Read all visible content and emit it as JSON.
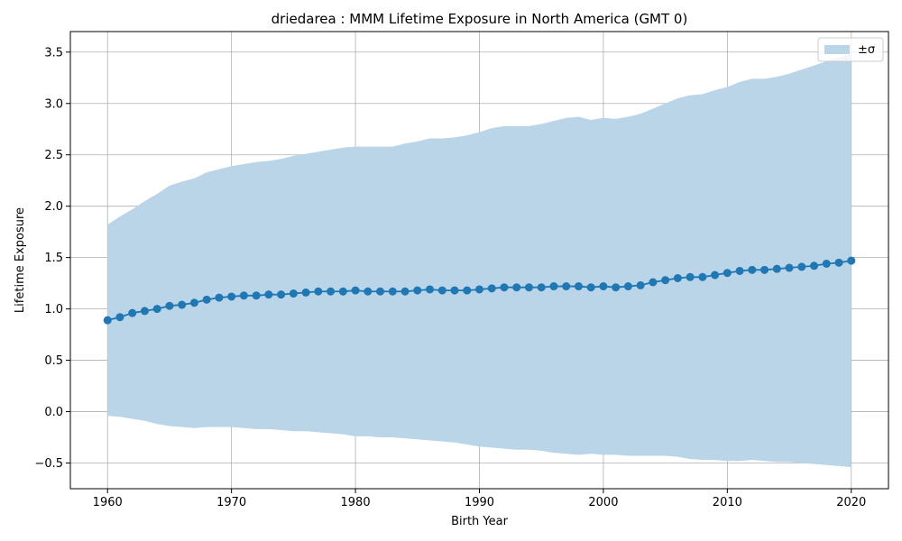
{
  "chart_data": {
    "type": "line",
    "title": "driedarea : MMM Lifetime Exposure in North America (GMT 0)",
    "xlabel": "Birth Year",
    "ylabel": "Lifetime Exposure",
    "xlim": [
      1957,
      2023
    ],
    "ylim": [
      -0.75,
      3.7
    ],
    "x_ticks": [
      1960,
      1970,
      1980,
      1990,
      2000,
      2010,
      2020
    ],
    "x_tick_labels": [
      "1960",
      "1970",
      "1980",
      "1990",
      "2000",
      "2010",
      "2020"
    ],
    "y_ticks": [
      -0.5,
      0.0,
      0.5,
      1.0,
      1.5,
      2.0,
      2.5,
      3.0,
      3.5
    ],
    "y_tick_labels": [
      "−0.5",
      "0.0",
      "0.5",
      "1.0",
      "1.5",
      "2.0",
      "2.5",
      "3.0",
      "3.5"
    ],
    "grid": true,
    "legend_position": "top-right",
    "legend_label": "±σ",
    "colors": {
      "line": "#1f77b4",
      "band": "#bad4e8",
      "grid": "#b0b0b0"
    },
    "x": [
      1960,
      1961,
      1962,
      1963,
      1964,
      1965,
      1966,
      1967,
      1968,
      1969,
      1970,
      1971,
      1972,
      1973,
      1974,
      1975,
      1976,
      1977,
      1978,
      1979,
      1980,
      1981,
      1982,
      1983,
      1984,
      1985,
      1986,
      1987,
      1988,
      1989,
      1990,
      1991,
      1992,
      1993,
      1994,
      1995,
      1996,
      1997,
      1998,
      1999,
      2000,
      2001,
      2002,
      2003,
      2004,
      2005,
      2006,
      2007,
      2008,
      2009,
      2010,
      2011,
      2012,
      2013,
      2014,
      2015,
      2016,
      2017,
      2018,
      2019,
      2020
    ],
    "series": [
      {
        "name": "mean",
        "values": [
          0.89,
          0.92,
          0.96,
          0.98,
          1.0,
          1.03,
          1.04,
          1.06,
          1.09,
          1.11,
          1.12,
          1.13,
          1.13,
          1.14,
          1.14,
          1.15,
          1.16,
          1.17,
          1.17,
          1.17,
          1.18,
          1.17,
          1.17,
          1.17,
          1.17,
          1.18,
          1.19,
          1.18,
          1.18,
          1.18,
          1.19,
          1.2,
          1.21,
          1.21,
          1.21,
          1.21,
          1.22,
          1.22,
          1.22,
          1.21,
          1.22,
          1.21,
          1.22,
          1.23,
          1.26,
          1.28,
          1.3,
          1.31,
          1.31,
          1.33,
          1.35,
          1.37,
          1.38,
          1.38,
          1.39,
          1.4,
          1.41,
          1.42,
          1.44,
          1.45,
          1.47
        ]
      }
    ],
    "band_upper": [
      1.82,
      1.9,
      1.97,
      2.05,
      2.12,
      2.2,
      2.24,
      2.27,
      2.33,
      2.36,
      2.39,
      2.41,
      2.43,
      2.44,
      2.46,
      2.49,
      2.51,
      2.53,
      2.55,
      2.57,
      2.58,
      2.58,
      2.58,
      2.58,
      2.61,
      2.63,
      2.66,
      2.66,
      2.67,
      2.69,
      2.72,
      2.76,
      2.78,
      2.78,
      2.78,
      2.8,
      2.83,
      2.86,
      2.87,
      2.84,
      2.86,
      2.85,
      2.87,
      2.9,
      2.95,
      3.0,
      3.05,
      3.08,
      3.09,
      3.13,
      3.16,
      3.21,
      3.24,
      3.24,
      3.26,
      3.29,
      3.33,
      3.37,
      3.41,
      3.45,
      3.48
    ],
    "band_lower": [
      -0.04,
      -0.05,
      -0.07,
      -0.09,
      -0.12,
      -0.14,
      -0.15,
      -0.16,
      -0.15,
      -0.15,
      -0.15,
      -0.16,
      -0.17,
      -0.17,
      -0.18,
      -0.19,
      -0.19,
      -0.2,
      -0.21,
      -0.22,
      -0.24,
      -0.24,
      -0.25,
      -0.25,
      -0.26,
      -0.27,
      -0.28,
      -0.29,
      -0.3,
      -0.32,
      -0.34,
      -0.35,
      -0.36,
      -0.37,
      -0.37,
      -0.38,
      -0.4,
      -0.41,
      -0.42,
      -0.41,
      -0.42,
      -0.42,
      -0.43,
      -0.43,
      -0.43,
      -0.43,
      -0.44,
      -0.46,
      -0.47,
      -0.47,
      -0.48,
      -0.48,
      -0.47,
      -0.48,
      -0.49,
      -0.49,
      -0.5,
      -0.51,
      -0.52,
      -0.53,
      -0.54
    ]
  }
}
